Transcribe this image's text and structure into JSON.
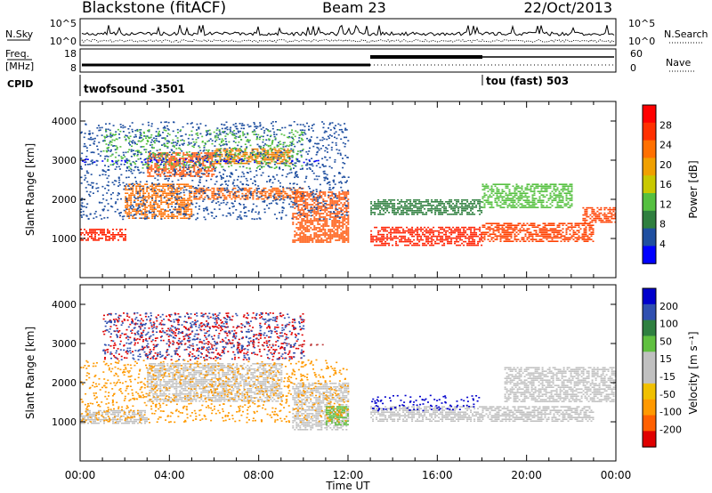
{
  "header": {
    "station": "Blackstone (fitACF)",
    "beam": "Beam 23",
    "date": "22/Oct/2013"
  },
  "noise_panel": {
    "left_label": "N.Sky",
    "left_ticks": [
      "10^5",
      "10^0"
    ],
    "right_label": "N.Search",
    "right_ticks": [
      "10^5",
      "10^0"
    ]
  },
  "freq_panel": {
    "left_label_1": "Freq.",
    "left_label_2": "[MHz]",
    "left_ticks": [
      "18",
      "8"
    ],
    "right_label": "Nave",
    "right_ticks": [
      "60",
      "0"
    ]
  },
  "cpid_panel": {
    "label": "CPID",
    "segments": [
      {
        "name": "twofsound -3501",
        "start_hour": 0,
        "end_hour": 18
      },
      {
        "name": "tou (fast) 503",
        "start_hour": 18,
        "end_hour": 24
      }
    ]
  },
  "colors": {
    "power_scale": [
      "#0000ff",
      "#1f4fa0",
      "#2f7f3f",
      "#55c040",
      "#c8c800",
      "#f0a000",
      "#ff7000",
      "#ff3000",
      "#ff0000"
    ],
    "velocity_scale": [
      "#e00000",
      "#ff6000",
      "#ff9900",
      "#f0c000",
      "#c0c0c0",
      "#c0c0c0",
      "#60c040",
      "#2f8040",
      "#3050b0",
      "#0000cc"
    ]
  },
  "chart_data": [
    {
      "type": "heatmap",
      "name": "power",
      "ylabel": "Slant Range [km]",
      "ylim": [
        0,
        4500
      ],
      "yticks": [
        "1000",
        "2000",
        "3000",
        "4000"
      ],
      "xlim": [
        0,
        24
      ],
      "colorbar_label": "Power [dB]",
      "colorbar_ticks": [
        "4",
        "8",
        "12",
        "16",
        "20",
        "24",
        "28"
      ],
      "bands": [
        {
          "t0": 0.0,
          "t1": 2.0,
          "r0": 950,
          "r1": 1250,
          "color": "#ff2000"
        },
        {
          "t0": 2.0,
          "t1": 5.0,
          "r0": 1500,
          "r1": 2400,
          "color": "#ff7000"
        },
        {
          "t0": 3.0,
          "t1": 6.0,
          "r0": 2600,
          "r1": 3200,
          "color": "#ff5000"
        },
        {
          "t0": 5.0,
          "t1": 10.0,
          "r0": 2000,
          "r1": 2300,
          "color": "#ff6000"
        },
        {
          "t0": 6.0,
          "t1": 9.5,
          "r0": 2900,
          "r1": 3300,
          "color": "#f08000"
        },
        {
          "t0": 9.5,
          "t1": 12.0,
          "r0": 900,
          "r1": 2200,
          "color": "#ff5000"
        },
        {
          "t0": 13.0,
          "t1": 18.0,
          "r0": 800,
          "r1": 1300,
          "color": "#ff2000"
        },
        {
          "t0": 18.0,
          "t1": 23.0,
          "r0": 900,
          "r1": 1400,
          "color": "#ff4000"
        },
        {
          "t0": 13.0,
          "t1": 18.0,
          "r0": 1600,
          "r1": 2000,
          "color": "#2f7f3f"
        },
        {
          "t0": 18.0,
          "t1": 22.0,
          "r0": 1800,
          "r1": 2400,
          "color": "#55c040"
        },
        {
          "t0": 22.5,
          "t1": 24.0,
          "r0": 1400,
          "r1": 1800,
          "color": "#ff4000"
        }
      ],
      "scatter": [
        {
          "t0": 0.0,
          "t1": 12.0,
          "r0": 1500,
          "r1": 4000,
          "color": "#1f4fa0"
        },
        {
          "t0": 1.0,
          "t1": 10.0,
          "r0": 2800,
          "r1": 3800,
          "color": "#55c040"
        },
        {
          "t0": 0.0,
          "t1": 11.0,
          "r0": 2950,
          "r1": 3050,
          "color": "#0000ff"
        }
      ]
    },
    {
      "type": "heatmap",
      "name": "velocity",
      "ylabel": "Slant Range [km]",
      "ylim": [
        0,
        4500
      ],
      "yticks": [
        "1000",
        "2000",
        "3000",
        "4000"
      ],
      "xlim": [
        0,
        24
      ],
      "xlabel": "Time UT",
      "xticks": [
        "00:00",
        "04:00",
        "08:00",
        "12:00",
        "16:00",
        "20:00",
        "00:00"
      ],
      "colorbar_label": "Velocity [m s⁻¹]",
      "colorbar_ticks": [
        "200",
        "100",
        "50",
        "15",
        "-15",
        "-50",
        "-100",
        "-200"
      ],
      "bands": [
        {
          "t0": 0.0,
          "t1": 3.0,
          "r0": 950,
          "r1": 1300,
          "color": "#c0c0c0"
        },
        {
          "t0": 3.0,
          "t1": 9.0,
          "r0": 1500,
          "r1": 2500,
          "color": "#c0c0c0"
        },
        {
          "t0": 9.5,
          "t1": 12.0,
          "r0": 800,
          "r1": 2000,
          "color": "#c0c0c0"
        },
        {
          "t0": 13.0,
          "t1": 18.0,
          "r0": 1000,
          "r1": 1400,
          "color": "#c0c0c0"
        },
        {
          "t0": 18.0,
          "t1": 23.0,
          "r0": 1000,
          "r1": 1400,
          "color": "#c0c0c0"
        },
        {
          "t0": 19.0,
          "t1": 24.0,
          "r0": 1500,
          "r1": 2400,
          "color": "#c0c0c0"
        },
        {
          "t0": 11.0,
          "t1": 12.0,
          "r0": 900,
          "r1": 1400,
          "color": "#60c040"
        }
      ],
      "scatter": [
        {
          "t0": 1.0,
          "t1": 10.0,
          "r0": 2600,
          "r1": 3800,
          "color": "#e00000"
        },
        {
          "t0": 1.0,
          "t1": 10.0,
          "r0": 2600,
          "r1": 3800,
          "color": "#3050b0"
        },
        {
          "t0": 13.0,
          "t1": 18.0,
          "r0": 1300,
          "r1": 1700,
          "color": "#0000cc"
        },
        {
          "t0": 4.0,
          "t1": 11.0,
          "r0": 2950,
          "r1": 3050,
          "color": "#c04040"
        },
        {
          "t0": 0.0,
          "t1": 12.0,
          "r0": 1000,
          "r1": 2600,
          "color": "#ff9900"
        }
      ]
    }
  ]
}
